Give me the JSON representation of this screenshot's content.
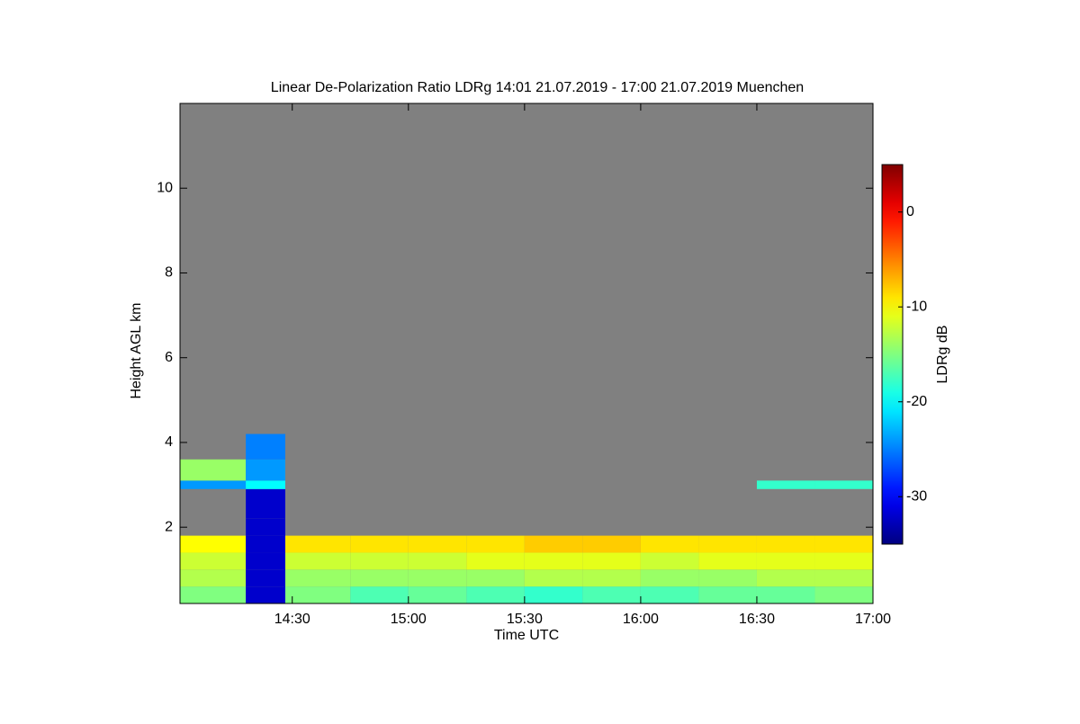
{
  "chart_data": {
    "type": "heatmap",
    "title": "Linear De-Polarization Ratio LDRg   14:01 21.07.2019 - 17:00 21.07.2019 Muenchen",
    "xlabel": "Time UTC",
    "ylabel": "Height AGL km",
    "colorbar_label": "LDRg dB",
    "colormap": "jet",
    "missing_color": "#808080",
    "xlim": [
      14.0167,
      17.0
    ],
    "xticks": [
      {
        "value": 14.5,
        "label": "14:30"
      },
      {
        "value": 15.0,
        "label": "15:00"
      },
      {
        "value": 15.5,
        "label": "15:30"
      },
      {
        "value": 16.0,
        "label": "16:00"
      },
      {
        "value": 16.5,
        "label": "16:30"
      },
      {
        "value": 17.0,
        "label": "17:00"
      }
    ],
    "ylim": [
      0.2,
      12
    ],
    "yticks": [
      2,
      4,
      6,
      8,
      10
    ],
    "clim": [
      -35,
      5
    ],
    "cticks": [
      0,
      -10,
      -20,
      -30
    ],
    "x_bins": [
      14.0167,
      14.3,
      14.47,
      14.75,
      15.0,
      15.25,
      15.5,
      15.75,
      16.0,
      16.25,
      16.5,
      16.75,
      17.0
    ],
    "y_bins": [
      0.2,
      0.6,
      1.0,
      1.4,
      1.8,
      2.2,
      2.9,
      3.1,
      3.6,
      4.2,
      12
    ],
    "z": [
      [
        -15,
        -32,
        -15,
        -17,
        -16,
        -17,
        -18,
        -17,
        -17,
        -16,
        -16,
        -15
      ],
      [
        -13,
        -32,
        -14,
        -14,
        -14,
        -14,
        -13,
        -13,
        -14,
        -14,
        -13,
        -13
      ],
      [
        -12,
        -32,
        -12,
        -12,
        -12,
        -11,
        -11,
        -11,
        -12,
        -11,
        -11,
        -11
      ],
      [
        -10,
        -32,
        -9,
        -9,
        -9,
        -9,
        -8,
        -8,
        -9,
        -9,
        -9,
        -9
      ],
      [
        null,
        -32,
        null,
        null,
        null,
        null,
        null,
        null,
        null,
        null,
        null,
        null
      ],
      [
        null,
        -32,
        null,
        null,
        null,
        null,
        null,
        null,
        null,
        null,
        null,
        null
      ],
      [
        -24,
        -20,
        null,
        null,
        null,
        null,
        null,
        null,
        null,
        null,
        -18,
        -18
      ],
      [
        -14,
        -24,
        null,
        null,
        null,
        null,
        null,
        null,
        null,
        null,
        null,
        null
      ],
      [
        null,
        -25,
        null,
        null,
        null,
        null,
        null,
        null,
        null,
        null,
        null,
        null
      ],
      [
        null,
        null,
        null,
        null,
        null,
        null,
        null,
        null,
        null,
        null,
        null,
        null
      ]
    ]
  }
}
